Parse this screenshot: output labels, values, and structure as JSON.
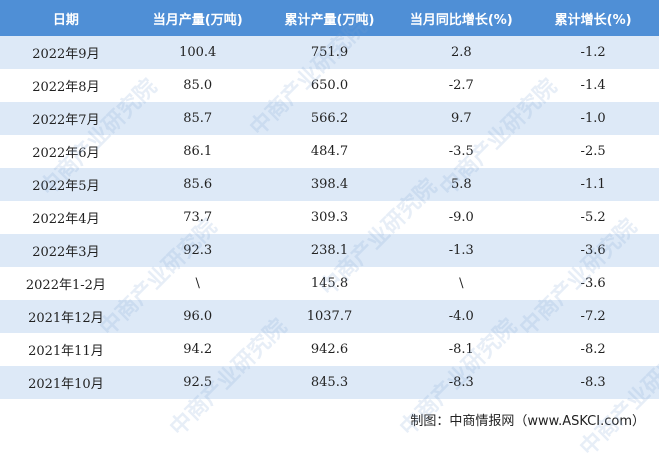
{
  "table": {
    "header": [
      "日期",
      "当月产量(万吨)",
      "累计产量(万吨)",
      "当月同比增长(%)",
      "累计增长(%)"
    ],
    "rows": [
      [
        "2022年9月",
        "100.4",
        "751.9",
        "2.8",
        "-1.2"
      ],
      [
        "2022年8月",
        "85.0",
        "650.0",
        "-2.7",
        "-1.4"
      ],
      [
        "2022年7月",
        "85.7",
        "566.2",
        "9.7",
        "-1.0"
      ],
      [
        "2022年6月",
        "86.1",
        "484.7",
        "-3.5",
        "-2.5"
      ],
      [
        "2022年5月",
        "85.6",
        "398.4",
        "5.8",
        "-1.1"
      ],
      [
        "2022年4月",
        "73.7",
        "309.3",
        "-9.0",
        "-5.2"
      ],
      [
        "2022年3月",
        "92.3",
        "238.1",
        "-1.3",
        "-3.6"
      ],
      [
        "2022年1-2月",
        "\\",
        "145.8",
        "\\",
        "-3.6"
      ],
      [
        "2021年12月",
        "96.0",
        "1037.7",
        "-4.0",
        "-7.2"
      ],
      [
        "2021年11月",
        "94.2",
        "942.6",
        "-8.1",
        "-8.2"
      ],
      [
        "2021年10月",
        "92.5",
        "845.3",
        "-8.3",
        "-8.3"
      ]
    ]
  },
  "watermark": "中商产业研究院",
  "source": "制图：中商情报网（www.ASKCI.com）"
}
